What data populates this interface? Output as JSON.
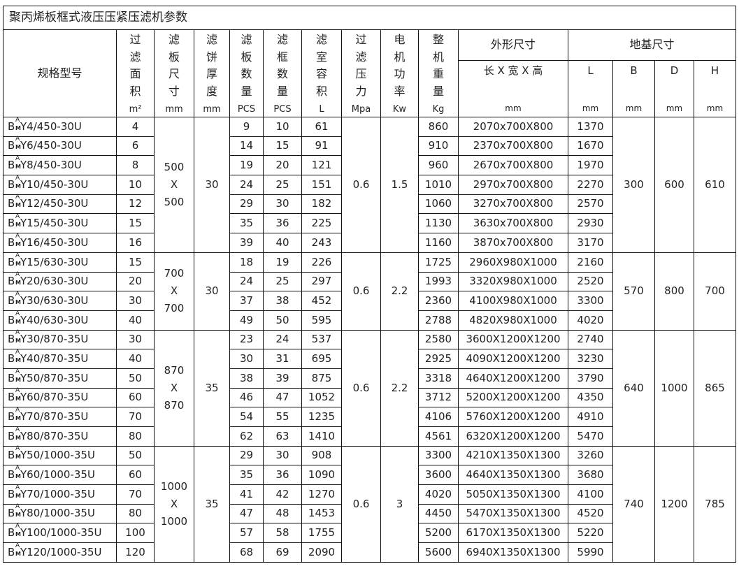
{
  "title": "聚丙烯板框式液压压紧压滤机参数",
  "headers": {
    "model": "规格型号",
    "area": {
      "chars": "过滤面积",
      "unit": "m²"
    },
    "plate_size": {
      "chars": "滤板尺寸",
      "unit": "mm"
    },
    "cake": {
      "chars": "滤饼厚度",
      "unit": "mm"
    },
    "plates": {
      "chars": "滤板数量",
      "unit": "PCS"
    },
    "frames": {
      "chars": "滤框数量",
      "unit": "PCS"
    },
    "volume": {
      "chars": "滤室容积",
      "unit": "L"
    },
    "pressure": {
      "chars": "过滤压力",
      "unit": "Mpa"
    },
    "power": {
      "chars": "电机功率",
      "unit": "Kw"
    },
    "weight": {
      "chars": "整机重量",
      "unit": "Kg"
    },
    "outer": "外形尺寸",
    "outer_sub": {
      "label": "长 X 宽 X 高",
      "unit": "mm"
    },
    "foundation": "地基尺寸",
    "foundation_sub": [
      {
        "label": "L",
        "unit": "mm"
      },
      {
        "label": "B",
        "unit": "mm"
      },
      {
        "label": "D",
        "unit": "mm"
      },
      {
        "label": "H",
        "unit": "mm"
      }
    ]
  },
  "model_prefix": {
    "base": "B",
    "sup": "A",
    "sub": "M"
  },
  "groups": [
    {
      "plate_size": [
        "500",
        "X",
        "500"
      ],
      "cake": "30",
      "pressure": "0.6",
      "power": "1.5",
      "B": "300",
      "D": "600",
      "H": "610",
      "rows": [
        {
          "model": "Y4/450-30U",
          "area": "4",
          "plates": "9",
          "frames": "10",
          "volume": "61",
          "weight": "860",
          "dims": "2070x700X800",
          "L": "1370"
        },
        {
          "model": "Y6/450-30U",
          "area": "6",
          "plates": "14",
          "frames": "15",
          "volume": "91",
          "weight": "910",
          "dims": "2370x700X800",
          "L": "1670"
        },
        {
          "model": "Y8/450-30U",
          "area": "8",
          "plates": "19",
          "frames": "20",
          "volume": "121",
          "weight": "960",
          "dims": "2670x700X800",
          "L": "1970"
        },
        {
          "model": "Y10/450-30U",
          "area": "10",
          "plates": "24",
          "frames": "25",
          "volume": "151",
          "weight": "1010",
          "dims": "2970x700X800",
          "L": "2270"
        },
        {
          "model": "Y12/450-30U",
          "area": "12",
          "plates": "29",
          "frames": "30",
          "volume": "182",
          "weight": "1060",
          "dims": "3270x700X800",
          "L": "2570"
        },
        {
          "model": "Y15/450-30U",
          "area": "15",
          "plates": "35",
          "frames": "36",
          "volume": "225",
          "weight": "1130",
          "dims": "3630x700X800",
          "L": "2930"
        },
        {
          "model": "Y16/450-30U",
          "area": "16",
          "plates": "39",
          "frames": "40",
          "volume": "243",
          "weight": "1160",
          "dims": "3870x700X800",
          "L": "3170"
        }
      ]
    },
    {
      "plate_size": [
        "700",
        "X",
        "700"
      ],
      "cake": "30",
      "pressure": "0.6",
      "power": "2.2",
      "B": "570",
      "D": "800",
      "H": "700",
      "rows": [
        {
          "model": "Y15/630-30U",
          "area": "15",
          "plates": "18",
          "frames": "19",
          "volume": "226",
          "weight": "1725",
          "dims": "2960X980X1000",
          "L": "2160"
        },
        {
          "model": "Y20/630-30U",
          "area": "20",
          "plates": "24",
          "frames": "25",
          "volume": "297",
          "weight": "1993",
          "dims": "3320X980X1000",
          "L": "2520"
        },
        {
          "model": "Y30/630-30U",
          "area": "30",
          "plates": "37",
          "frames": "38",
          "volume": "452",
          "weight": "2360",
          "dims": "4100X980X1000",
          "L": "3300"
        },
        {
          "model": "Y40/630-30U",
          "area": "40",
          "plates": "49",
          "frames": "50",
          "volume": "595",
          "weight": "2788",
          "dims": "4820X980X1000",
          "L": "4020"
        }
      ]
    },
    {
      "plate_size": [
        "870",
        "X",
        "870"
      ],
      "cake": "35",
      "pressure": "0.6",
      "power": "2.2",
      "B": "640",
      "D": "1000",
      "H": "865",
      "rows": [
        {
          "model": "Y30/870-35U",
          "area": "30",
          "plates": "23",
          "frames": "24",
          "volume": "537",
          "weight": "2580",
          "dims": "3600X1200X1200",
          "L": "2740"
        },
        {
          "model": "Y40/870-35U",
          "area": "40",
          "plates": "30",
          "frames": "31",
          "volume": "695",
          "weight": "2925",
          "dims": "4090X1200X1200",
          "L": "3230"
        },
        {
          "model": "Y50/870-35U",
          "area": "50",
          "plates": "38",
          "frames": "39",
          "volume": "875",
          "weight": "3318",
          "dims": "4640X1200X1200",
          "L": "3790"
        },
        {
          "model": "Y60/870-35U",
          "area": "60",
          "plates": "46",
          "frames": "47",
          "volume": "1052",
          "weight": "3712",
          "dims": "5200X1200X1200",
          "L": "4350"
        },
        {
          "model": "Y70/870-35U",
          "area": "70",
          "plates": "54",
          "frames": "55",
          "volume": "1235",
          "weight": "4106",
          "dims": "5760X1200X1200",
          "L": "4910"
        },
        {
          "model": "Y80/870-35U",
          "area": "80",
          "plates": "62",
          "frames": "63",
          "volume": "1410",
          "weight": "4561",
          "dims": "6320X1200X1200",
          "L": "5470"
        }
      ]
    },
    {
      "plate_size": [
        "1000",
        "X",
        "1000"
      ],
      "cake": "35",
      "pressure": "0.6",
      "power": "3",
      "B": "740",
      "D": "1200",
      "H": "785",
      "rows": [
        {
          "model": "Y50/1000-35U",
          "area": "50",
          "plates": "29",
          "frames": "30",
          "volume": "908",
          "weight": "3300",
          "dims": "4210X1350X1300",
          "L": "3260"
        },
        {
          "model": "Y60/1000-35U",
          "area": "60",
          "plates": "35",
          "frames": "36",
          "volume": "1090",
          "weight": "3600",
          "dims": "4640X1350X1300",
          "L": "3680"
        },
        {
          "model": "Y70/1000-35U",
          "area": "70",
          "plates": "41",
          "frames": "42",
          "volume": "1270",
          "weight": "4020",
          "dims": "5050X1350X1300",
          "L": "4100"
        },
        {
          "model": "Y80/1000-35U",
          "area": "80",
          "plates": "47",
          "frames": "48",
          "volume": "1453",
          "weight": "4450",
          "dims": "5470X1350X1300",
          "L": "4520"
        },
        {
          "model": "Y100/1000-35U",
          "area": "100",
          "plates": "57",
          "frames": "58",
          "volume": "1755",
          "weight": "5200",
          "dims": "6170X1350X1300",
          "L": "5220"
        },
        {
          "model": "Y120/1000-35U",
          "area": "120",
          "plates": "68",
          "frames": "69",
          "volume": "2090",
          "weight": "5600",
          "dims": "6940X1350X1300",
          "L": "5990"
        }
      ]
    }
  ]
}
